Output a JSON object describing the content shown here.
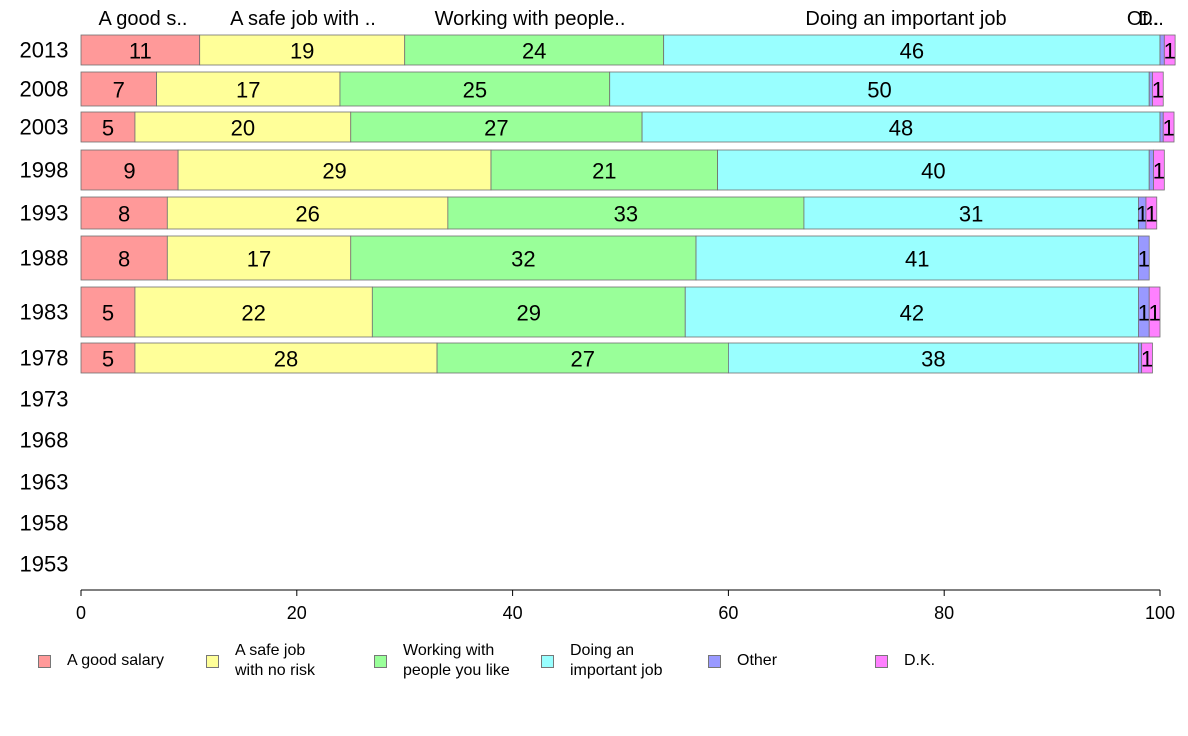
{
  "chart_data": {
    "type": "bar",
    "orientation": "horizontal",
    "stacked": true,
    "categories": [
      "2013",
      "2008",
      "2003",
      "1998",
      "1993",
      "1988",
      "1983",
      "1978",
      "1973",
      "1968",
      "1963",
      "1958",
      "1953"
    ],
    "column_headers": [
      "A good s..",
      "A safe job with ..",
      "Working with people..",
      "Doing an important job",
      "Ot..",
      "D.."
    ],
    "series": [
      {
        "name": "A good salary",
        "color": "#ff9999",
        "values": [
          11,
          7,
          5,
          9,
          8,
          8,
          5,
          5,
          null,
          null,
          null,
          null,
          null
        ]
      },
      {
        "name": "A safe job\nwith no risk",
        "color": "#ffff99",
        "values": [
          19,
          17,
          20,
          29,
          26,
          17,
          22,
          28,
          null,
          null,
          null,
          null,
          null
        ]
      },
      {
        "name": "Working with\npeople you like",
        "color": "#99ff99",
        "values": [
          24,
          25,
          27,
          21,
          33,
          32,
          29,
          27,
          null,
          null,
          null,
          null,
          null
        ]
      },
      {
        "name": "Doing an\nimportant job",
        "color": "#99ffff",
        "values": [
          46,
          50,
          48,
          40,
          31,
          41,
          42,
          38,
          null,
          null,
          null,
          null,
          null
        ]
      },
      {
        "name": "Other",
        "color": "#9999ff",
        "values": [
          0.4,
          0.3,
          0.3,
          0.4,
          0.7,
          1,
          1,
          0.3,
          null,
          null,
          null,
          null,
          null
        ]
      },
      {
        "name": "D.K.",
        "color": "#ff80ff",
        "values": [
          1,
          1,
          1,
          1,
          1,
          0,
          1,
          1,
          null,
          null,
          null,
          null,
          null
        ]
      }
    ],
    "data_labels": [
      [
        "11",
        "19",
        "24",
        "46",
        "",
        "1"
      ],
      [
        "7",
        "17",
        "25",
        "50",
        "",
        "1"
      ],
      [
        "5",
        "20",
        "27",
        "48",
        "",
        "1"
      ],
      [
        "9",
        "29",
        "21",
        "40",
        "",
        "1"
      ],
      [
        "8",
        "26",
        "33",
        "31",
        "1",
        "1"
      ],
      [
        "8",
        "17",
        "32",
        "41",
        "1",
        ""
      ],
      [
        "5",
        "22",
        "29",
        "42",
        "1",
        "1"
      ],
      [
        "5",
        "28",
        "27",
        "38",
        "",
        "1"
      ]
    ],
    "xlim": [
      0,
      100
    ],
    "xticks": [
      0,
      20,
      40,
      60,
      80,
      100
    ],
    "grid": false,
    "legend_position": "bottom"
  }
}
